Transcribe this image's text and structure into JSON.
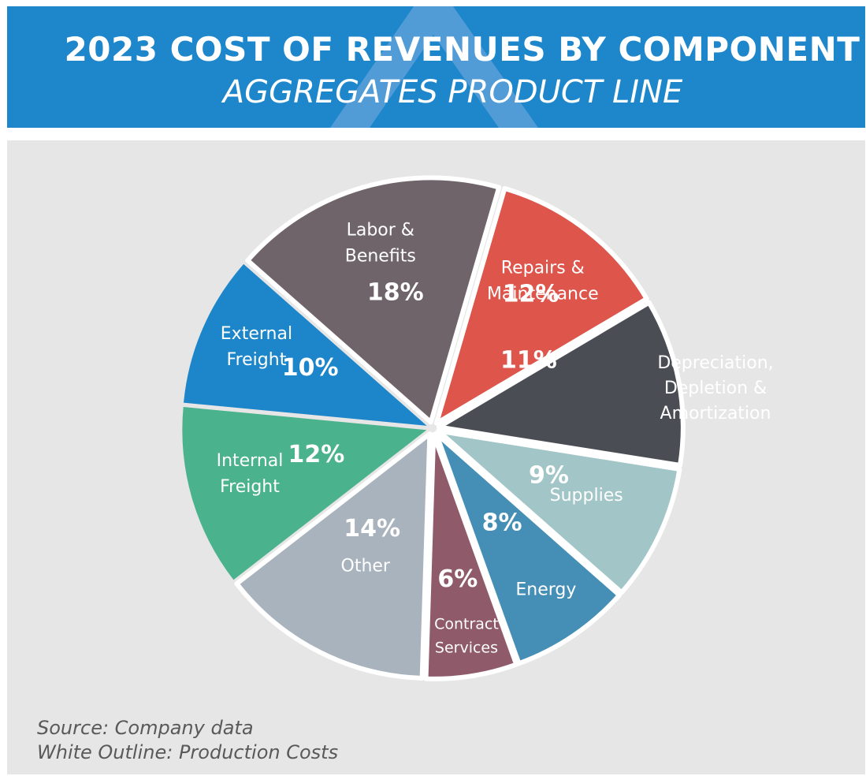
{
  "header": {
    "title": "2023 COST OF REVENUES BY COMPONENT",
    "subtitle": "AGGREGATES PRODUCT LINE",
    "logo_icon": "double-chevron-up-icon"
  },
  "colors": {
    "header_bg": "#1e87cc",
    "panel_bg": "#e6e6e6",
    "logo": "#5b9fd8"
  },
  "chart_data": {
    "type": "pie",
    "title": "2023 COST OF REVENUES BY COMPONENT",
    "subtitle": "AGGREGATES PRODUCT LINE",
    "slices": [
      {
        "label": "Labor & Benefits",
        "label_lines": [
          "Labor &",
          "Benefits"
        ],
        "value": 18,
        "value_label": "18%",
        "color": "#6f6469",
        "production_cost": true
      },
      {
        "label": "Repairs & Maintenance",
        "label_lines": [
          "Repairs &",
          "Maintenance"
        ],
        "value": 12,
        "value_label": "12%",
        "color": "#dd554b",
        "production_cost": true
      },
      {
        "label": "Depreciation, Depletion & Amortization",
        "label_lines": [
          "Depreciation,",
          "Depletion &",
          "Amortization"
        ],
        "value": 11,
        "value_label": "11%",
        "color": "#4a4d53",
        "production_cost": true
      },
      {
        "label": "Supplies",
        "label_lines": [
          "Supplies"
        ],
        "value": 9,
        "value_label": "9%",
        "color": "#a2c6c7",
        "production_cost": true
      },
      {
        "label": "Energy",
        "label_lines": [
          "Energy"
        ],
        "value": 8,
        "value_label": "8%",
        "color": "#458fb6",
        "production_cost": true
      },
      {
        "label": "Contract Services",
        "label_lines": [
          "Contract",
          "Services"
        ],
        "value": 6,
        "value_label": "6%",
        "color": "#8f5b6b",
        "production_cost": true
      },
      {
        "label": "Other",
        "label_lines": [
          "Other"
        ],
        "value": 14,
        "value_label": "14%",
        "color": "#a9b3bd",
        "production_cost": true
      },
      {
        "label": "Internal Freight",
        "label_lines": [
          "Internal",
          "Freight"
        ],
        "value": 12,
        "value_label": "12%",
        "color": "#4ab38e",
        "production_cost": false
      },
      {
        "label": "External Freight",
        "label_lines": [
          "External",
          "Freight"
        ],
        "value": 10,
        "value_label": "10%",
        "color": "#1d86ca",
        "production_cost": false
      }
    ],
    "legend": "none",
    "notes": [
      "Source: Company data",
      "White Outline: Production Costs"
    ]
  },
  "footer": {
    "source": "Source: Company data",
    "outline_note": "White Outline: Production Costs"
  }
}
